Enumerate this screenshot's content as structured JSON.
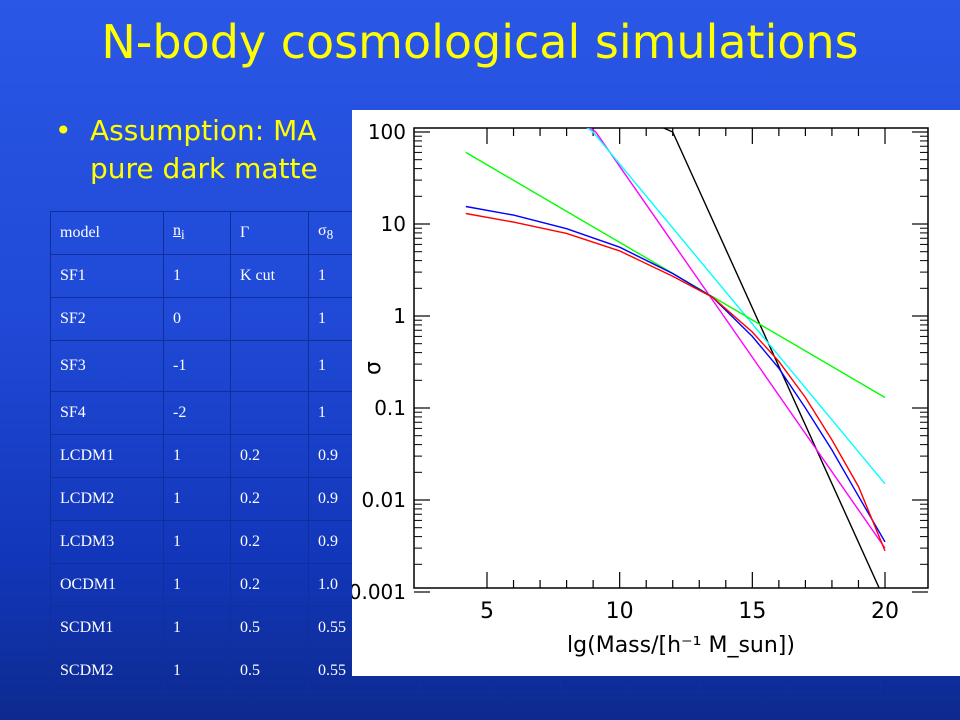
{
  "slide": {
    "title": "N-body cosmological simulations",
    "bullet_marker": "•",
    "bullet_text": "Assumption: MA",
    "bullet_text_line2": "pure dark matte"
  },
  "table": {
    "header": [
      "model",
      "ni",
      "Γ",
      "σ8"
    ],
    "rows": [
      [
        "SF1",
        "1",
        "K cut",
        "1"
      ],
      [
        "SF2",
        "0",
        "",
        "1"
      ],
      [
        "SF3",
        "-1",
        "",
        "1"
      ],
      [
        "SF4",
        "-2",
        "",
        "1"
      ],
      [
        "LCDM1",
        "1",
        "0.2",
        "0.9"
      ],
      [
        "LCDM2",
        "1",
        "0.2",
        "0.9"
      ],
      [
        "LCDM3",
        "1",
        "0.2",
        "0.9"
      ],
      [
        "OCDM1",
        "1",
        "0.2",
        "1.0"
      ],
      [
        "SCDM1",
        "1",
        "0.5",
        "0.55"
      ],
      [
        "SCDM2",
        "1",
        "0.5",
        "0.55"
      ]
    ]
  },
  "chart_data": {
    "type": "line",
    "xlabel": "lg(Mass/[h⁻¹ M_sun])",
    "ylabel": "σ",
    "yscale": "log",
    "xlim": [
      4.2,
      20
    ],
    "ylim": [
      0.001,
      100
    ],
    "xticks": [
      "5",
      "10",
      "15",
      "20"
    ],
    "yticks": [
      "0.001",
      "0.01",
      "0.1",
      "1",
      "10",
      "100"
    ],
    "series": [
      {
        "color": "#000000",
        "x": [
          4.2,
          12.0,
          20.0
        ],
        "y": [
          1000,
          100,
          0.0008
        ]
      },
      {
        "color": "#ff00ff",
        "x": [
          4.2,
          9.1,
          20.0
        ],
        "y": [
          1000,
          100,
          0.003
        ]
      },
      {
        "color": "#00ffff",
        "x": [
          4.2,
          9.0,
          20.0
        ],
        "y": [
          1000,
          100,
          0.015
        ]
      },
      {
        "color": "#00ff00",
        "x": [
          4.2,
          20.0
        ],
        "y": [
          60,
          0.13
        ]
      },
      {
        "color": "#0000ff",
        "x": [
          4.2,
          6.0,
          8.0,
          10.0,
          12.0,
          13.5,
          15.0,
          16.0,
          17.0,
          18.0,
          19.0,
          20.0
        ],
        "y": [
          15.5,
          12.5,
          8.9,
          5.6,
          2.9,
          1.6,
          0.6,
          0.27,
          0.1,
          0.035,
          0.011,
          0.0035
        ]
      },
      {
        "color": "#ff0000",
        "x": [
          4.2,
          6.0,
          8.0,
          10.0,
          12.0,
          13.5,
          15.0,
          16.0,
          17.0,
          18.0,
          19.0,
          20.0
        ],
        "y": [
          13.0,
          10.5,
          7.9,
          5.1,
          2.7,
          1.6,
          0.67,
          0.32,
          0.13,
          0.045,
          0.014,
          0.0028
        ]
      }
    ]
  }
}
